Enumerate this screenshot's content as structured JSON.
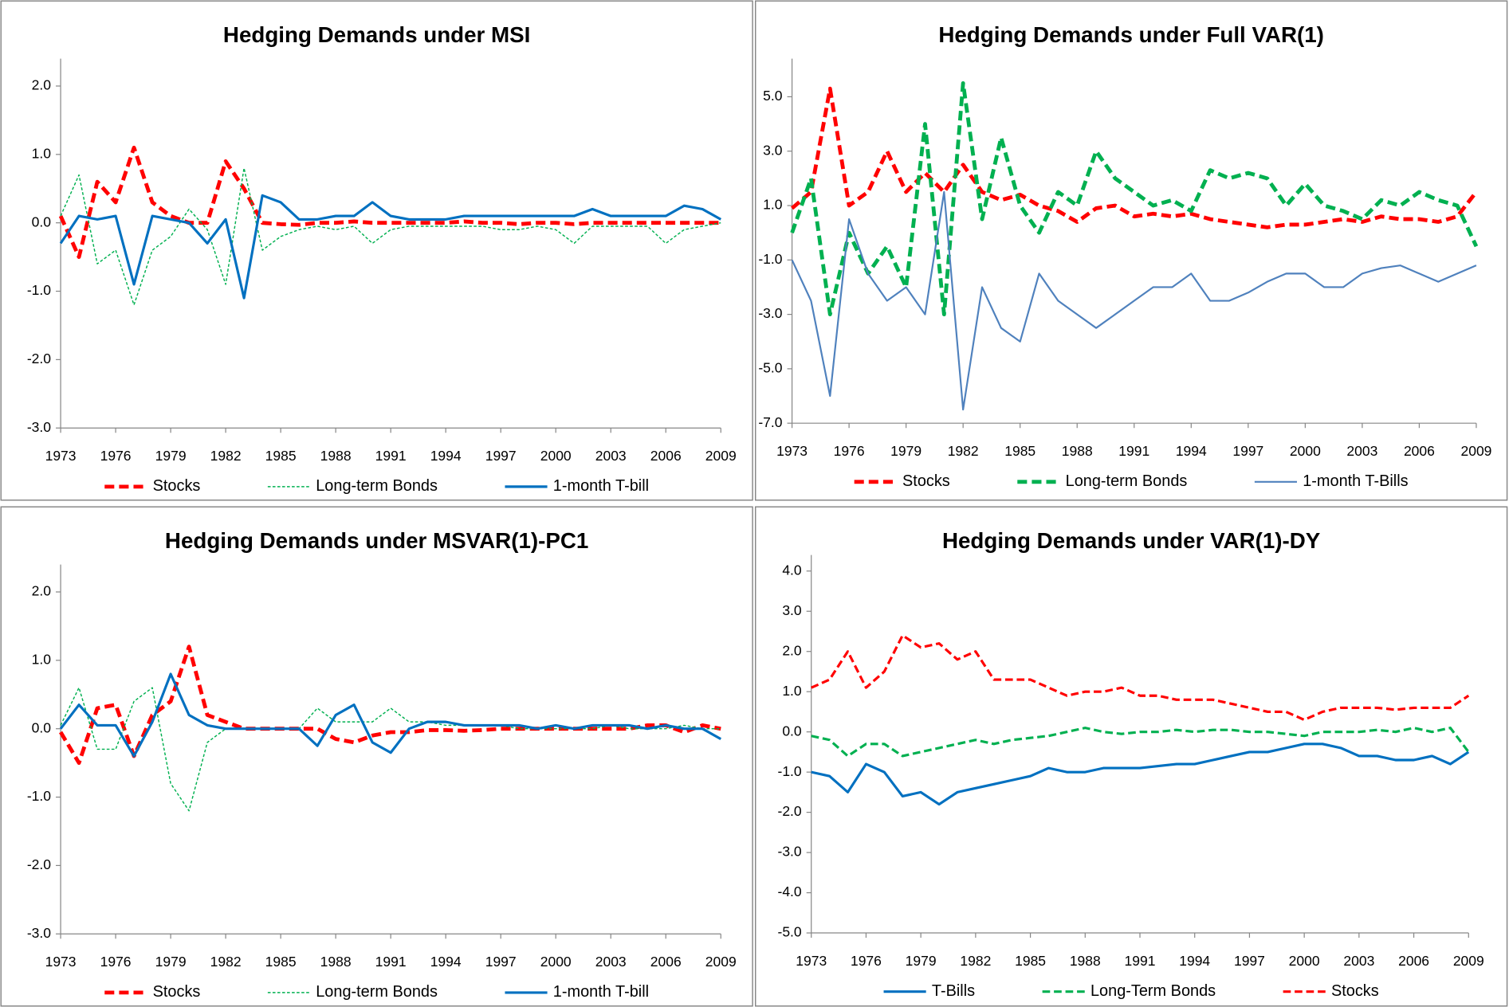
{
  "chart_data": [
    {
      "type": "line",
      "title": "Hedging Demands under MSI",
      "x": [
        1973,
        1974,
        1975,
        1976,
        1977,
        1978,
        1979,
        1980,
        1981,
        1982,
        1983,
        1984,
        1985,
        1986,
        1987,
        1988,
        1989,
        1990,
        1991,
        1992,
        1993,
        1994,
        1995,
        1996,
        1997,
        1998,
        1999,
        2000,
        2001,
        2002,
        2003,
        2004,
        2005,
        2006,
        2007,
        2008,
        2009
      ],
      "xlim": [
        1973,
        2009
      ],
      "xticks": [
        1973,
        1976,
        1979,
        1982,
        1985,
        1988,
        1991,
        1994,
        1997,
        2000,
        2003,
        2006,
        2009
      ],
      "ylim": [
        -3,
        2.4
      ],
      "yticks": [
        {
          "value": -3,
          "label": "-3.0"
        },
        {
          "value": -2,
          "label": "-2.0"
        },
        {
          "value": -1,
          "label": "-1.0"
        },
        {
          "value": 0,
          "label": "0.0"
        },
        {
          "value": 1,
          "label": "1.0"
        },
        {
          "value": 2,
          "label": "2.0"
        }
      ],
      "series": [
        {
          "name": "Stocks",
          "color": "#ff0000",
          "line_style": "dashed",
          "values": [
            0.1,
            -0.5,
            0.6,
            0.3,
            1.1,
            0.3,
            0.1,
            0.0,
            0.0,
            0.9,
            0.5,
            0.0,
            -0.02,
            -0.03,
            0.0,
            0.0,
            0.02,
            0.0,
            0.0,
            0.0,
            0.0,
            0.0,
            0.02,
            0.0,
            0.0,
            -0.02,
            0.0,
            0.0,
            -0.02,
            0.0,
            0.0,
            0.0,
            0.0,
            0.0,
            0.0,
            0.0,
            0.0
          ]
        },
        {
          "name": "Long-term Bonds",
          "color": "#00b050",
          "line_style": "thin-dashed",
          "values": [
            0.1,
            0.7,
            -0.6,
            -0.4,
            -1.2,
            -0.4,
            -0.2,
            0.2,
            -0.1,
            -0.9,
            0.8,
            -0.4,
            -0.2,
            -0.1,
            -0.05,
            -0.1,
            -0.05,
            -0.3,
            -0.1,
            -0.05,
            -0.05,
            -0.05,
            -0.05,
            -0.05,
            -0.1,
            -0.1,
            -0.05,
            -0.1,
            -0.3,
            -0.05,
            -0.05,
            -0.05,
            -0.05,
            -0.3,
            -0.1,
            -0.05,
            0.0
          ]
        },
        {
          "name": "1-month T-bill",
          "color": "#0070c0",
          "line_style": "solid",
          "values": [
            -0.3,
            0.1,
            0.05,
            0.1,
            -0.9,
            0.1,
            0.05,
            0.0,
            -0.3,
            0.05,
            -1.1,
            0.4,
            0.3,
            0.05,
            0.05,
            0.1,
            0.1,
            0.3,
            0.1,
            0.05,
            0.05,
            0.05,
            0.1,
            0.1,
            0.1,
            0.1,
            0.1,
            0.1,
            0.1,
            0.2,
            0.1,
            0.1,
            0.1,
            0.1,
            0.25,
            0.2,
            0.05
          ]
        }
      ]
    },
    {
      "type": "line",
      "title": "Hedging Demands under Full VAR(1)",
      "x": [
        1973,
        1974,
        1975,
        1976,
        1977,
        1978,
        1979,
        1980,
        1981,
        1982,
        1983,
        1984,
        1985,
        1986,
        1987,
        1988,
        1989,
        1990,
        1991,
        1992,
        1993,
        1994,
        1995,
        1996,
        1997,
        1998,
        1999,
        2000,
        2001,
        2002,
        2003,
        2004,
        2005,
        2006,
        2007,
        2008,
        2009
      ],
      "xlim": [
        1973,
        2009
      ],
      "xticks": [
        1973,
        1976,
        1979,
        1982,
        1985,
        1988,
        1991,
        1994,
        1997,
        2000,
        2003,
        2006,
        2009
      ],
      "ylim": [
        -7,
        6.4
      ],
      "yticks": [
        {
          "value": -7,
          "label": "-7.0"
        },
        {
          "value": -5,
          "label": "-5.0"
        },
        {
          "value": -3,
          "label": "-3.0"
        },
        {
          "value": -1,
          "label": "-1.0"
        },
        {
          "value": 1,
          "label": "1.0"
        },
        {
          "value": 3,
          "label": "3.0"
        },
        {
          "value": 5,
          "label": "5.0"
        }
      ],
      "series": [
        {
          "name": "Stocks",
          "color": "#ff0000",
          "line_style": "dashed",
          "values": [
            0.9,
            1.5,
            5.3,
            1.0,
            1.5,
            3.0,
            1.5,
            2.2,
            1.5,
            2.5,
            1.5,
            1.2,
            1.4,
            1.0,
            0.8,
            0.4,
            0.9,
            1.0,
            0.6,
            0.7,
            0.6,
            0.7,
            0.5,
            0.4,
            0.3,
            0.2,
            0.3,
            0.3,
            0.4,
            0.5,
            0.4,
            0.6,
            0.5,
            0.5,
            0.4,
            0.6,
            1.5
          ]
        },
        {
          "name": "Long-term Bonds",
          "color": "#00b050",
          "line_style": "dashed",
          "values": [
            0.0,
            2.0,
            -3.0,
            0.0,
            -1.5,
            -0.5,
            -2.0,
            4.0,
            -3.0,
            5.5,
            0.5,
            3.5,
            1.0,
            0.0,
            1.5,
            1.0,
            3.0,
            2.0,
            1.5,
            1.0,
            1.2,
            0.8,
            2.3,
            2.0,
            2.2,
            2.0,
            1.0,
            1.8,
            1.0,
            0.8,
            0.5,
            1.2,
            1.0,
            1.5,
            1.2,
            1.0,
            -0.5
          ]
        },
        {
          "name": "1-month T-Bills",
          "color": "#4f81bd",
          "line_style": "thin-solid",
          "values": [
            -1.0,
            -2.5,
            -6.0,
            0.5,
            -1.5,
            -2.5,
            -2.0,
            -3.0,
            1.5,
            -6.5,
            -2.0,
            -3.5,
            -4.0,
            -1.5,
            -2.5,
            -3.0,
            -3.5,
            -3.0,
            -2.5,
            -2.0,
            -2.0,
            -1.5,
            -2.5,
            -2.5,
            -2.2,
            -1.8,
            -1.5,
            -1.5,
            -2.0,
            -2.0,
            -1.5,
            -1.3,
            -1.2,
            -1.5,
            -1.8,
            -1.5,
            -1.2
          ]
        }
      ]
    },
    {
      "type": "line",
      "title": "Hedging Demands under MSVAR(1)-PC1",
      "x": [
        1973,
        1974,
        1975,
        1976,
        1977,
        1978,
        1979,
        1980,
        1981,
        1982,
        1983,
        1984,
        1985,
        1986,
        1987,
        1988,
        1989,
        1990,
        1991,
        1992,
        1993,
        1994,
        1995,
        1996,
        1997,
        1998,
        1999,
        2000,
        2001,
        2002,
        2003,
        2004,
        2005,
        2006,
        2007,
        2008,
        2009
      ],
      "xlim": [
        1973,
        2009
      ],
      "xticks": [
        1973,
        1976,
        1979,
        1982,
        1985,
        1988,
        1991,
        1994,
        1997,
        2000,
        2003,
        2006,
        2009
      ],
      "ylim": [
        -3,
        2.4
      ],
      "yticks": [
        {
          "value": -3,
          "label": "-3.0"
        },
        {
          "value": -2,
          "label": "-2.0"
        },
        {
          "value": -1,
          "label": "-1.0"
        },
        {
          "value": 0,
          "label": "0.0"
        },
        {
          "value": 1,
          "label": "1.0"
        },
        {
          "value": 2,
          "label": "2.0"
        }
      ],
      "series": [
        {
          "name": "Stocks",
          "color": "#ff0000",
          "line_style": "dashed",
          "values": [
            -0.05,
            -0.5,
            0.3,
            0.35,
            -0.4,
            0.2,
            0.4,
            1.2,
            0.2,
            0.1,
            0,
            0,
            0,
            0,
            0,
            -0.15,
            -0.2,
            -0.1,
            -0.05,
            -0.05,
            -0.02,
            -0.02,
            -0.03,
            -0.02,
            0,
            0,
            0,
            0,
            0,
            0,
            0,
            0,
            0.05,
            0.05,
            -0.05,
            0.05,
            0
          ]
        },
        {
          "name": "Long-term Bonds",
          "color": "#00b050",
          "line_style": "thin-dashed",
          "values": [
            0.05,
            0.6,
            -0.3,
            -0.3,
            0.4,
            0.6,
            -0.8,
            -1.2,
            -0.2,
            0,
            0,
            0,
            0,
            0,
            0.3,
            0.1,
            0.1,
            0.1,
            0.3,
            0.1,
            0.1,
            0.05,
            0.05,
            0.05,
            0.05,
            0,
            0,
            0,
            0,
            0,
            0.05,
            0,
            0,
            0,
            0.05,
            0,
            0
          ]
        },
        {
          "name": "1-month T-bill",
          "color": "#0070c0",
          "line_style": "solid",
          "values": [
            0,
            0.35,
            0.05,
            0.05,
            -0.4,
            0.1,
            0.8,
            0.2,
            0.05,
            0,
            0,
            0,
            0,
            0,
            -0.25,
            0.2,
            0.35,
            -0.2,
            -0.35,
            0,
            0.1,
            0.1,
            0.05,
            0.05,
            0.05,
            0.05,
            0,
            0.05,
            0,
            0.05,
            0.05,
            0.05,
            0,
            0.05,
            0,
            0,
            -0.15
          ]
        }
      ]
    },
    {
      "type": "line",
      "title": "Hedging Demands under VAR(1)-DY",
      "x": [
        1973,
        1974,
        1975,
        1976,
        1977,
        1978,
        1979,
        1980,
        1981,
        1982,
        1983,
        1984,
        1985,
        1986,
        1987,
        1988,
        1989,
        1990,
        1991,
        1992,
        1993,
        1994,
        1995,
        1996,
        1997,
        1998,
        1999,
        2000,
        2001,
        2002,
        2003,
        2004,
        2005,
        2006,
        2007,
        2008,
        2009
      ],
      "xlim": [
        1973,
        2009
      ],
      "xticks": [
        1973,
        1976,
        1979,
        1982,
        1985,
        1988,
        1991,
        1994,
        1997,
        2000,
        2003,
        2006,
        2009
      ],
      "ylim": [
        -5,
        4.4
      ],
      "yticks": [
        {
          "value": -5,
          "label": "-5.0"
        },
        {
          "value": -4,
          "label": "-4.0"
        },
        {
          "value": -3,
          "label": "-3.0"
        },
        {
          "value": -2,
          "label": "-2.0"
        },
        {
          "value": -1,
          "label": "-1.0"
        },
        {
          "value": 0,
          "label": "0.0"
        },
        {
          "value": 1,
          "label": "1.0"
        },
        {
          "value": 2,
          "label": "2.0"
        },
        {
          "value": 3,
          "label": "3.0"
        },
        {
          "value": 4,
          "label": "4.0"
        }
      ],
      "series": [
        {
          "name": "T-Bills",
          "color": "#0070c0",
          "line_style": "solid",
          "values": [
            -1.0,
            -1.1,
            -1.5,
            -0.8,
            -1.0,
            -1.6,
            -1.5,
            -1.8,
            -1.5,
            -1.4,
            -1.3,
            -1.2,
            -1.1,
            -0.9,
            -1.0,
            -1.0,
            -0.9,
            -0.9,
            -0.9,
            -0.85,
            -0.8,
            -0.8,
            -0.7,
            -0.6,
            -0.5,
            -0.5,
            -0.4,
            -0.3,
            -0.3,
            -0.4,
            -0.6,
            -0.6,
            -0.7,
            -0.7,
            -0.6,
            -0.8,
            -0.5
          ]
        },
        {
          "name": "Long-Term Bonds",
          "color": "#00b050",
          "line_style": "medium-dashed",
          "values": [
            -0.1,
            -0.2,
            -0.6,
            -0.3,
            -0.3,
            -0.6,
            -0.5,
            -0.4,
            -0.3,
            -0.2,
            -0.3,
            -0.2,
            -0.15,
            -0.1,
            0,
            0.1,
            0,
            -0.05,
            0,
            0,
            0.05,
            0,
            0.05,
            0.05,
            0,
            0,
            -0.05,
            -0.1,
            0,
            0,
            0,
            0.05,
            0,
            0.1,
            0,
            0.1,
            -0.5
          ]
        },
        {
          "name": "Stocks",
          "color": "#ff0000",
          "line_style": "medium-dashed",
          "values": [
            1.1,
            1.3,
            2.0,
            1.1,
            1.5,
            2.4,
            2.1,
            2.2,
            1.8,
            2.0,
            1.3,
            1.3,
            1.3,
            1.1,
            0.9,
            1.0,
            1.0,
            1.1,
            0.9,
            0.9,
            0.8,
            0.8,
            0.8,
            0.7,
            0.6,
            0.5,
            0.5,
            0.3,
            0.5,
            0.6,
            0.6,
            0.6,
            0.55,
            0.6,
            0.6,
            0.6,
            0.9
          ]
        }
      ]
    }
  ]
}
